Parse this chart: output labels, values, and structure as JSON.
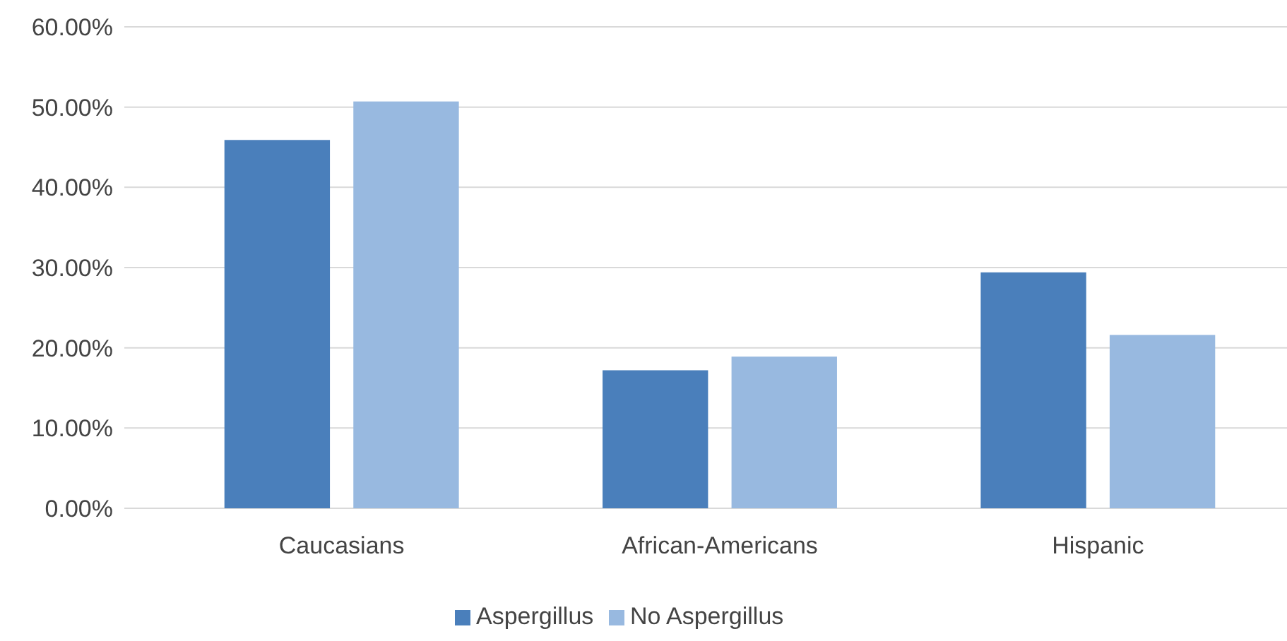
{
  "chart_data": {
    "type": "bar",
    "categories": [
      "Caucasians",
      "African-Americans",
      "Hispanic"
    ],
    "series": [
      {
        "name": "Aspergillus",
        "color": "#4a7fbb",
        "values": [
          45.9,
          17.2,
          29.4
        ]
      },
      {
        "name": "No Aspergillus",
        "color": "#98b9e0",
        "values": [
          50.7,
          18.9,
          21.6
        ]
      }
    ],
    "ylim": [
      0,
      60
    ],
    "yticks": [
      {
        "value": 0,
        "label": "0.00%"
      },
      {
        "value": 10,
        "label": "10.00%"
      },
      {
        "value": 20,
        "label": "20.00%"
      },
      {
        "value": 30,
        "label": "30.00%"
      },
      {
        "value": 40,
        "label": "40.00%"
      },
      {
        "value": 50,
        "label": "50.00%"
      },
      {
        "value": 60,
        "label": "60.00%"
      }
    ],
    "grid": "y",
    "legend": "bottom"
  }
}
